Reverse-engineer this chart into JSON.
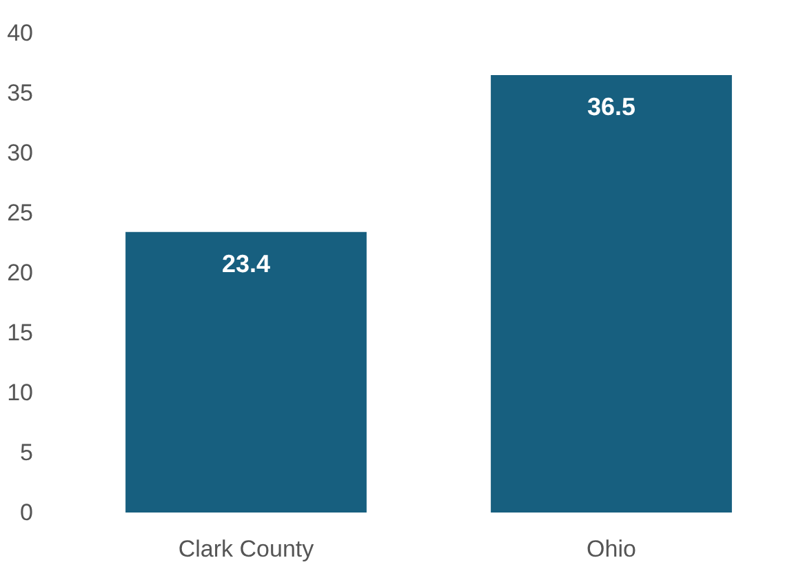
{
  "chart_data": {
    "type": "bar",
    "categories": [
      "Clark County",
      "Ohio"
    ],
    "values": [
      23.4,
      36.5
    ],
    "color": "#175f7f",
    "ylim": [
      0,
      40
    ],
    "yticks": [
      0,
      5,
      10,
      15,
      20,
      25,
      30,
      35,
      40
    ],
    "grid": false,
    "data_labels": true
  }
}
